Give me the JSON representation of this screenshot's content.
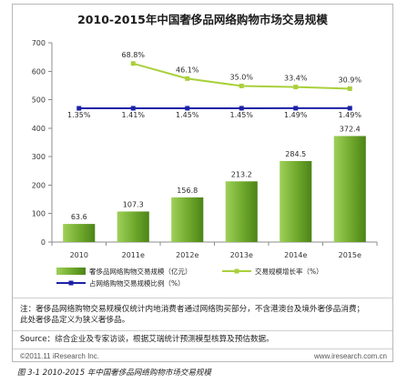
{
  "chart_data": {
    "type": "bar",
    "title": "2010-2015年中国奢侈品网络购物市场交易规模",
    "categories": [
      "2010",
      "2011e",
      "2012e",
      "2013e",
      "2014e",
      "2015e"
    ],
    "ylim": [
      0,
      700
    ],
    "yticks": [
      0,
      100,
      200,
      300,
      400,
      500,
      600,
      700
    ],
    "y2lim": [
      -200,
      100
    ],
    "grid": false,
    "legend": "bottom",
    "series": [
      {
        "name": "奢侈品网络购物交易规模（亿元）",
        "type": "bar",
        "axis": "y",
        "color": "#6fa82c",
        "values": [
          63.6,
          107.3,
          156.8,
          213.2,
          284.5,
          372.4
        ],
        "labels": [
          "63.6",
          "107.3",
          "156.8",
          "213.2",
          "284.5",
          "372.4"
        ]
      },
      {
        "name": "交易规模增长率（%）",
        "type": "line",
        "axis": "y2",
        "color": "#a9d03b",
        "values": [
          null,
          68.8,
          46.1,
          35.0,
          33.4,
          30.9
        ],
        "labels": [
          null,
          "68.8%",
          "46.1%",
          "35.0%",
          "33.4%",
          "30.9%"
        ]
      },
      {
        "name": "占网络购物交易规模比例（%）",
        "type": "line",
        "axis": "y2",
        "color": "#1c22a6",
        "values": [
          1.35,
          1.41,
          1.45,
          1.45,
          1.49,
          1.49
        ],
        "labels": [
          "1.35%",
          "1.41%",
          "1.45%",
          "1.45%",
          "1.49%",
          "1.49%"
        ]
      }
    ]
  },
  "notes": {
    "line1": "注：奢侈品网络购物交易规模仅统计内地消费者通过网络购买部分，不含港澳台及境外奢侈品消费；",
    "line2": "此处奢侈品定义为狭义奢侈品。",
    "source": "Source：综合企业及专家访谈，根据艾瑞统计预测模型核算及预估数据。"
  },
  "footer": {
    "copyright": "©2011.11 iResearch Inc.",
    "website": "www.iresearch.com.cn"
  },
  "caption": "图 3-1 2010-2015 年中国奢侈品网络购物市场交易规模"
}
